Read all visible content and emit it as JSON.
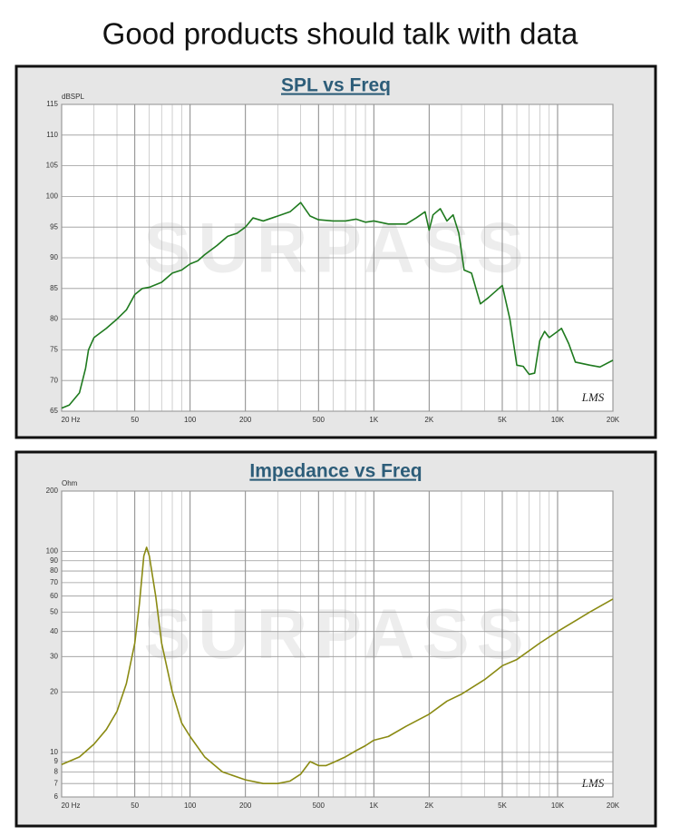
{
  "title": "Good products should talk with data",
  "chart_data": [
    {
      "type": "line",
      "title": "SPL vs Freq",
      "y_label": "dBSPL",
      "watermark": "SURPASS",
      "logo": "LMS",
      "xlog": true,
      "ylog": false,
      "grid": true,
      "color": "#1f7a1f",
      "xlim": [
        20,
        20000
      ],
      "xticks": [
        {
          "value": 20,
          "label": "20 Hz"
        },
        50,
        100,
        200,
        500,
        {
          "value": 1000,
          "label": "1K"
        },
        {
          "value": 2000,
          "label": "2K"
        },
        {
          "value": 5000,
          "label": "5K"
        },
        {
          "value": 10000,
          "label": "10K"
        },
        {
          "value": 20000,
          "label": "20K"
        }
      ],
      "minor_xticks": [
        30,
        40,
        60,
        70,
        80,
        90,
        300,
        400,
        600,
        700,
        800,
        900,
        3000,
        4000,
        6000,
        7000,
        8000,
        9000
      ],
      "ylim": [
        65,
        115
      ],
      "yticks": [
        65,
        70,
        75,
        80,
        85,
        90,
        95,
        100,
        105,
        110,
        115
      ],
      "x": [
        20,
        22,
        25,
        27,
        28,
        30,
        35,
        40,
        45,
        50,
        55,
        60,
        70,
        80,
        90,
        100,
        110,
        120,
        140,
        160,
        180,
        200,
        220,
        250,
        280,
        300,
        350,
        400,
        450,
        500,
        600,
        700,
        800,
        900,
        1000,
        1200,
        1500,
        1700,
        1900,
        2000,
        2100,
        2300,
        2500,
        2700,
        2900,
        3100,
        3400,
        3800,
        4200,
        5000,
        5500,
        6000,
        6500,
        7000,
        7500,
        8000,
        8500,
        9000,
        10000,
        10500,
        11500,
        12500,
        15000,
        17000,
        20000
      ],
      "values": [
        65.5,
        66,
        68,
        72,
        75,
        77,
        78.5,
        80,
        81.5,
        84,
        85,
        85.2,
        86,
        87.5,
        88,
        89,
        89.5,
        90.5,
        92,
        93.5,
        94,
        95,
        96.5,
        96,
        96.5,
        96.8,
        97.5,
        99,
        96.8,
        96.2,
        96,
        96,
        96.3,
        95.8,
        96,
        95.5,
        95.5,
        96.5,
        97.5,
        94.5,
        97,
        98,
        96,
        97,
        94,
        88,
        87.5,
        82.5,
        83.5,
        85.5,
        80,
        72.5,
        72.3,
        71,
        71.2,
        76.5,
        78,
        77,
        78,
        78.5,
        76,
        73,
        72.5,
        72.2,
        73.3
      ]
    },
    {
      "type": "line",
      "title": "Impedance vs Freq",
      "y_label": "Ohm",
      "watermark": "SURPASS",
      "logo": "LMS",
      "xlog": true,
      "ylog": true,
      "grid": true,
      "color": "#8a8a12",
      "xlim": [
        20,
        20000
      ],
      "xticks": [
        {
          "value": 20,
          "label": "20 Hz"
        },
        50,
        100,
        200,
        500,
        {
          "value": 1000,
          "label": "1K"
        },
        {
          "value": 2000,
          "label": "2K"
        },
        {
          "value": 5000,
          "label": "5K"
        },
        {
          "value": 10000,
          "label": "10K"
        },
        {
          "value": 20000,
          "label": "20K"
        }
      ],
      "minor_xticks": [
        30,
        40,
        60,
        70,
        80,
        90,
        300,
        400,
        600,
        700,
        800,
        900,
        3000,
        4000,
        6000,
        7000,
        8000,
        9000
      ],
      "ylim": [
        6,
        200
      ],
      "yticks": [
        6,
        7,
        8,
        9,
        10,
        20,
        30,
        40,
        50,
        60,
        70,
        80,
        90,
        100,
        200
      ],
      "x": [
        20,
        25,
        30,
        35,
        40,
        45,
        50,
        53,
        56,
        58,
        60,
        65,
        70,
        80,
        90,
        100,
        120,
        150,
        200,
        250,
        300,
        350,
        400,
        450,
        500,
        550,
        600,
        700,
        800,
        900,
        1000,
        1200,
        1500,
        2000,
        2500,
        3000,
        4000,
        5000,
        6000,
        8000,
        10000,
        15000,
        20000
      ],
      "values": [
        8.7,
        9.5,
        11,
        13,
        16,
        22,
        35,
        55,
        95,
        105,
        95,
        60,
        35,
        20,
        14,
        12,
        9.5,
        8,
        7.3,
        7,
        7,
        7.2,
        7.8,
        9,
        8.6,
        8.6,
        8.9,
        9.5,
        10.2,
        10.8,
        11.5,
        12,
        13.5,
        15.5,
        18,
        19.5,
        23,
        27,
        29,
        35,
        40,
        50,
        58
      ]
    }
  ]
}
